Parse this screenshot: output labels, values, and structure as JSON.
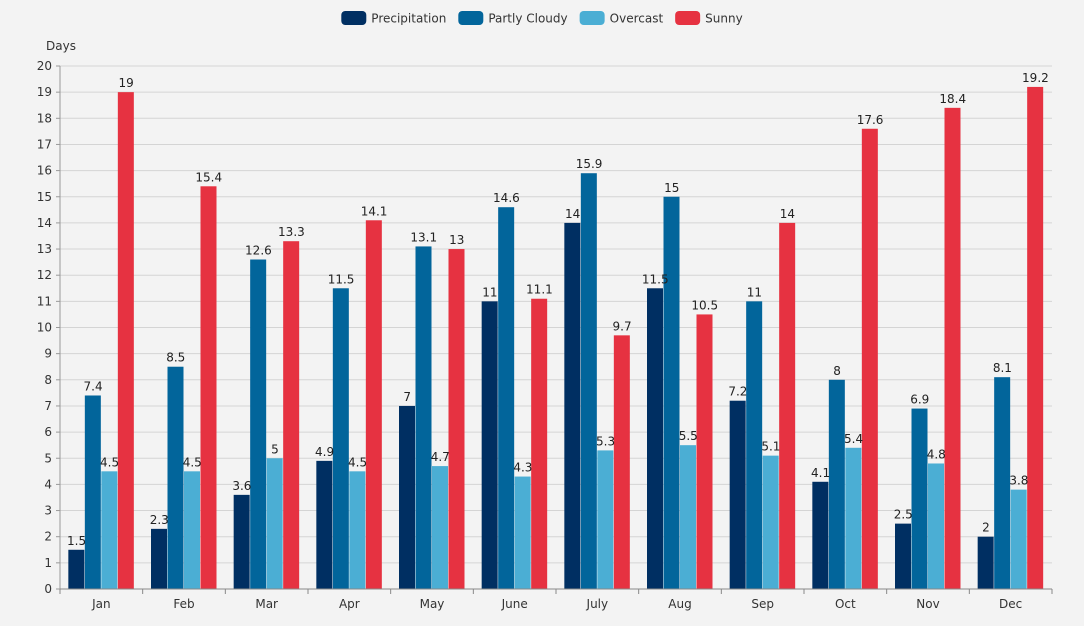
{
  "chart_data": {
    "type": "bar",
    "ylabel": "Days",
    "ylim": [
      0,
      20
    ],
    "ytick_step": 1,
    "grid": true,
    "legend_position": "top-center",
    "categories": [
      "Jan",
      "Feb",
      "Mar",
      "Apr",
      "May",
      "June",
      "July",
      "Aug",
      "Sep",
      "Oct",
      "Nov",
      "Dec"
    ],
    "series": [
      {
        "name": "Precipitation",
        "color": "#002f62",
        "values": [
          1.5,
          2.3,
          3.6,
          4.9,
          7,
          11,
          14,
          11.5,
          7.2,
          4.1,
          2.5,
          2
        ]
      },
      {
        "name": "Partly Cloudy",
        "color": "#02659b",
        "values": [
          7.4,
          8.5,
          12.6,
          11.5,
          13.1,
          14.6,
          15.9,
          15,
          11,
          8,
          6.9,
          8.1
        ]
      },
      {
        "name": "Overcast",
        "color": "#4baed4",
        "values": [
          4.5,
          4.5,
          5,
          4.5,
          4.7,
          4.3,
          5.3,
          5.5,
          5.1,
          5.4,
          4.8,
          3.8
        ]
      },
      {
        "name": "Sunny",
        "color": "#e63241",
        "values": [
          19,
          15.4,
          13.3,
          14.1,
          13,
          11.1,
          9.7,
          10.5,
          14,
          17.6,
          18.4,
          19.2
        ]
      }
    ]
  }
}
